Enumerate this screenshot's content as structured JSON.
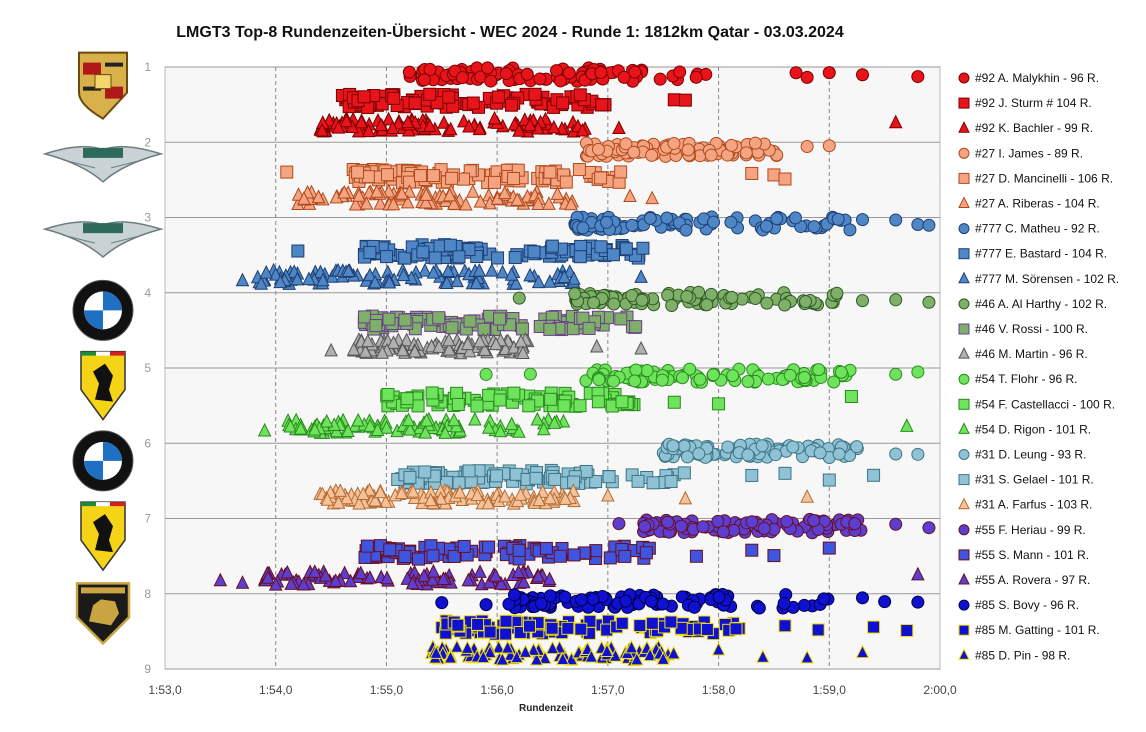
{
  "chart_data": {
    "type": "scatter",
    "title": "LMGT3 Top-8 Rundenzeiten-Übersicht - WEC 2024 - Runde 1: 1812km Qatar - 03.03.2024",
    "xlabel": "Rundenzeit",
    "ylabel": "",
    "xlim": [
      113.0,
      120.0
    ],
    "ylim": [
      1,
      9
    ],
    "x_ticks": [
      113,
      114,
      115,
      116,
      117,
      118,
      119,
      120
    ],
    "x_tick_labels": [
      "1:53,0",
      "1:54,0",
      "1:55,0",
      "1:56,0",
      "1:57,0",
      "1:58,0",
      "1:59,0",
      "2:00,0"
    ],
    "y_ticks": [
      1,
      2,
      3,
      4,
      5,
      6,
      7,
      8,
      9
    ],
    "grid": "vertical-dashed, horizontal-solid",
    "legend_position": "right",
    "team_logos": [
      {
        "name": "porsche-logo",
        "row": 1
      },
      {
        "name": "aston-martin-logo",
        "row": 2
      },
      {
        "name": "aston-martin-logo",
        "row": 3
      },
      {
        "name": "bmw-logo",
        "row": 4
      },
      {
        "name": "ferrari-logo",
        "row": 5
      },
      {
        "name": "bmw-logo",
        "row": 6
      },
      {
        "name": "ferrari-logo",
        "row": 7
      },
      {
        "name": "lamborghini-logo",
        "row": 8
      }
    ],
    "series": [
      {
        "name": "#92 A. Malykhin - 96 R.",
        "marker": "circle",
        "fill": "#e8141b",
        "stroke": "#7a0000",
        "y": 1.1,
        "xmin": 115.2,
        "xmax": 117.9,
        "extra": [
          118.7,
          118.8,
          119.0,
          119.3,
          119.8
        ],
        "n": 96
      },
      {
        "name": "#92 J. Sturm # 104 R.",
        "marker": "square",
        "fill": "#e8141b",
        "stroke": "#7a0000",
        "y": 1.45,
        "xmin": 114.6,
        "xmax": 117.0,
        "extra": [
          117.6,
          117.7
        ],
        "n": 104
      },
      {
        "name": "#92 K. Bachler - 99 R.",
        "marker": "triangle",
        "fill": "#e8141b",
        "stroke": "#7a0000",
        "y": 1.78,
        "xmin": 114.4,
        "xmax": 116.8,
        "extra": [
          117.1,
          119.6
        ],
        "n": 99
      },
      {
        "name": "#27 I. James - 89 R.",
        "marker": "circle",
        "fill": "#f5a482",
        "stroke": "#b04a1c",
        "y": 2.1,
        "xmin": 116.8,
        "xmax": 118.6,
        "extra": [
          118.8,
          119.0
        ],
        "n": 89
      },
      {
        "name": "#27 D. Mancinelli - 106 R.",
        "marker": "square",
        "fill": "#f5a482",
        "stroke": "#b04a1c",
        "y": 2.45,
        "xmin": 114.7,
        "xmax": 117.2,
        "extra": [
          114.1,
          118.3,
          118.5,
          118.6
        ],
        "n": 106
      },
      {
        "name": "#27 A. Riberas - 104 R.",
        "marker": "triangle",
        "fill": "#f5a482",
        "stroke": "#b04a1c",
        "y": 2.75,
        "xmin": 114.2,
        "xmax": 116.8,
        "extra": [
          117.2,
          117.4
        ],
        "n": 104
      },
      {
        "name": "#777 C. Matheu - 92 R.",
        "marker": "circle",
        "fill": "#4f86c6",
        "stroke": "#1d3f73",
        "y": 3.08,
        "xmin": 116.7,
        "xmax": 119.2,
        "extra": [
          119.3,
          119.6,
          119.8,
          119.9
        ],
        "n": 92
      },
      {
        "name": "#777 E. Bastard - 104 R.",
        "marker": "square",
        "fill": "#4f86c6",
        "stroke": "#1d3f73",
        "y": 3.45,
        "xmin": 114.8,
        "xmax": 117.6,
        "extra": [
          114.2
        ],
        "n": 104
      },
      {
        "name": "#777 M. Sörensen - 102 R.",
        "marker": "triangle",
        "fill": "#4f86c6",
        "stroke": "#1d3f73",
        "y": 3.8,
        "xmin": 113.8,
        "xmax": 116.8,
        "extra": [
          113.7,
          117.3
        ],
        "n": 102
      },
      {
        "name": "#46 A. Al Harthy - 102 R.",
        "marker": "circle",
        "fill": "#7fb06a",
        "stroke": "#2f5a23",
        "y": 4.08,
        "xmin": 116.7,
        "xmax": 119.1,
        "extra": [
          116.2,
          119.3,
          119.6,
          119.9
        ],
        "n": 102
      },
      {
        "name": "#46 V. Rossi - 100 R.",
        "marker": "square",
        "fill": "#7fb06a",
        "stroke": "#6a3f8c",
        "y": 4.4,
        "xmin": 114.8,
        "xmax": 117.3,
        "extra": [],
        "n": 100
      },
      {
        "name": "#46 M. Martin - 96 R.",
        "marker": "triangle",
        "fill": "#b0b0b0",
        "stroke": "#555555",
        "y": 4.72,
        "xmin": 114.7,
        "xmax": 116.3,
        "extra": [
          114.5,
          116.9,
          117.3
        ],
        "n": 96
      },
      {
        "name": "#54 T. Flohr - 96 R.",
        "marker": "circle",
        "fill": "#6ee35c",
        "stroke": "#2a8a1e",
        "y": 5.1,
        "xmin": 116.8,
        "xmax": 119.2,
        "extra": [
          115.9,
          116.3,
          119.6,
          119.8
        ],
        "n": 96
      },
      {
        "name": "#54 F. Castellacci - 100 R.",
        "marker": "square",
        "fill": "#6ee35c",
        "stroke": "#2a8a1e",
        "y": 5.42,
        "xmin": 115.0,
        "xmax": 117.3,
        "extra": [
          117.6,
          118.0,
          119.2
        ],
        "n": 100
      },
      {
        "name": "#54 D. Rigon - 101 R.",
        "marker": "triangle",
        "fill": "#6ee35c",
        "stroke": "#2a8a1e",
        "y": 5.78,
        "xmin": 114.1,
        "xmax": 116.6,
        "extra": [
          113.9,
          119.7
        ],
        "n": 101
      },
      {
        "name": "#31 D. Leung - 93 R.",
        "marker": "circle",
        "fill": "#8fc2d4",
        "stroke": "#3d7484",
        "y": 6.1,
        "xmin": 117.5,
        "xmax": 119.3,
        "extra": [
          119.6,
          119.8
        ],
        "n": 93
      },
      {
        "name": "#31 S. Gelael - 101 R.",
        "marker": "square",
        "fill": "#8fc2d4",
        "stroke": "#3d7484",
        "y": 6.45,
        "xmin": 115.1,
        "xmax": 117.7,
        "extra": [
          118.3,
          118.6,
          119.0,
          119.4
        ],
        "n": 101
      },
      {
        "name": "#31 A. Farfus - 103 R.",
        "marker": "triangle",
        "fill": "#f5c198",
        "stroke": "#b56c34",
        "y": 6.72,
        "xmin": 114.4,
        "xmax": 116.7,
        "extra": [
          117.0,
          117.7,
          118.8
        ],
        "n": 103
      },
      {
        "name": "#55 F. Heriau - 99 R.",
        "marker": "circle",
        "fill": "#5c3fd0",
        "stroke": "#6a0e1e",
        "y": 7.1,
        "xmin": 117.3,
        "xmax": 119.3,
        "extra": [
          117.1,
          119.6,
          119.9
        ],
        "n": 99
      },
      {
        "name": "#55 S. Mann - 101 R.",
        "marker": "square",
        "fill": "#3f55e0",
        "stroke": "#6a0e1e",
        "y": 7.45,
        "xmin": 114.8,
        "xmax": 117.4,
        "extra": [
          117.8,
          118.3,
          118.5,
          119.0
        ],
        "n": 101
      },
      {
        "name": "#55 A. Rovera - 97 R.",
        "marker": "triangle",
        "fill": "#5c3fd0",
        "stroke": "#6a0e1e",
        "y": 7.8,
        "xmin": 113.9,
        "xmax": 116.5,
        "extra": [
          113.5,
          113.7,
          119.8
        ],
        "n": 97
      },
      {
        "name": "#85 S. Bovy - 96 R.",
        "marker": "circle",
        "fill": "#1010d0",
        "stroke": "#000044",
        "y": 8.1,
        "xmin": 116.1,
        "xmax": 119.0,
        "extra": [
          115.5,
          115.9,
          119.3,
          119.5,
          119.8
        ],
        "n": 96
      },
      {
        "name": "#85 M. Gatting - 101 R.",
        "marker": "square",
        "fill": "#1010d0",
        "stroke": "#f0e000",
        "y": 8.45,
        "xmin": 115.5,
        "xmax": 118.3,
        "extra": [
          118.6,
          118.9,
          119.4,
          119.7
        ],
        "n": 101
      },
      {
        "name": "#85 D. Pin - 98 R.",
        "marker": "triangle",
        "fill": "#1010d0",
        "stroke": "#f0e000",
        "y": 8.8,
        "xmin": 115.4,
        "xmax": 117.6,
        "extra": [
          118.0,
          118.4,
          118.8,
          119.3
        ],
        "n": 98
      }
    ]
  }
}
